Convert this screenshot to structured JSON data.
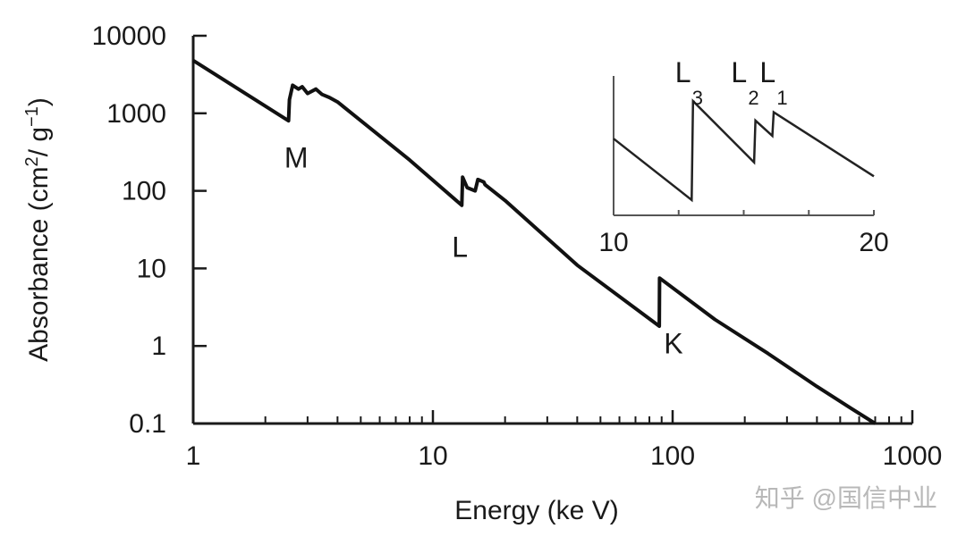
{
  "chart_data": [
    {
      "type": "line",
      "xlabel": "Energy (ke V)",
      "ylabel_parts": {
        "base": "Absorbance (cm",
        "sup1": "2",
        "mid": "/ g",
        "sup2": "−1",
        "end": ")"
      },
      "x_scale": "log",
      "y_scale": "log",
      "xlim": [
        1,
        1000
      ],
      "ylim": [
        0.1,
        10000
      ],
      "x_ticks": [
        "1",
        "10",
        "100",
        "1000"
      ],
      "y_ticks": [
        "0.1",
        "1",
        "10",
        "100",
        "1000",
        "10000"
      ],
      "grid": false,
      "series": [
        {
          "points": [
            [
              1,
              4800
            ],
            [
              2.5,
              800
            ],
            [
              2.52,
              1500
            ],
            [
              2.6,
              2300
            ],
            [
              2.75,
              2050
            ],
            [
              2.85,
              2200
            ],
            [
              3.0,
              1800
            ],
            [
              3.25,
              2050
            ],
            [
              3.45,
              1750
            ],
            [
              3.7,
              1600
            ],
            [
              4.0,
              1400
            ],
            [
              8,
              250
            ],
            [
              13.2,
              65
            ],
            [
              13.3,
              150
            ],
            [
              13.9,
              110
            ],
            [
              15.0,
              100
            ],
            [
              15.4,
              140
            ],
            [
              16.3,
              130
            ],
            [
              16.5,
              120
            ],
            [
              20,
              75
            ],
            [
              40,
              11
            ],
            [
              88,
              1.8
            ],
            [
              88.2,
              7.5
            ],
            [
              150,
              2.2
            ],
            [
              250,
              0.8
            ],
            [
              400,
              0.3
            ],
            [
              550,
              0.16
            ],
            [
              700,
              0.1
            ]
          ]
        }
      ],
      "annotations": [
        {
          "text": "M",
          "x": 2.4,
          "y": 200
        },
        {
          "text": "L",
          "x": 12,
          "y": 14
        },
        {
          "text": "K",
          "x": 92,
          "y": 0.8
        }
      ]
    },
    {
      "type": "line",
      "role": "inset",
      "xlim": [
        10,
        20
      ],
      "x_ticks": [
        "10",
        "20"
      ],
      "series": [
        {
          "points": [
            [
              10,
              0.55
            ],
            [
              13.0,
              0.11
            ],
            [
              13.05,
              0.82
            ],
            [
              15.4,
              0.38
            ],
            [
              15.45,
              0.68
            ],
            [
              16.1,
              0.57
            ],
            [
              16.15,
              0.74
            ],
            [
              20,
              0.28
            ]
          ]
        }
      ],
      "edge_labels": [
        {
          "text": "L",
          "sub": "3",
          "x": 13.05
        },
        {
          "text": "L",
          "sub": "2",
          "x": 15.2
        },
        {
          "text": "L",
          "sub": "1",
          "x": 16.3
        }
      ]
    }
  ],
  "watermark": "知乎 @国信中业"
}
